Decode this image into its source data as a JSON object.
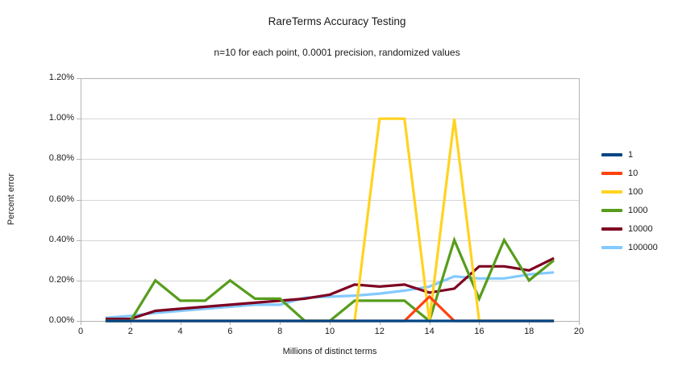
{
  "chart_data": {
    "type": "line",
    "title": "RareTerms Accuracy Testing",
    "subtitle": "n=10 for each point, 0.0001 precision, randomized values",
    "xlabel": "Millions of distinct terms",
    "ylabel": "Percent error",
    "x": [
      1,
      2,
      3,
      4,
      5,
      6,
      7,
      8,
      9,
      10,
      11,
      12,
      13,
      14,
      15,
      16,
      17,
      18,
      19
    ],
    "xlim": [
      0,
      20
    ],
    "ylim_percent": [
      0,
      1.2
    ],
    "x_tick_values": [
      0,
      2,
      4,
      6,
      8,
      10,
      12,
      14,
      16,
      18,
      20
    ],
    "y_tick_values": [
      0,
      0.2,
      0.4,
      0.6,
      0.8,
      1.0,
      1.2
    ],
    "y_tick_labels": [
      "0.00%",
      "0.20%",
      "0.40%",
      "0.60%",
      "0.80%",
      "1.00%",
      "1.20%"
    ],
    "grid": "horizontal",
    "legend_position": "right",
    "series": [
      {
        "name": "1",
        "color": "#004586",
        "values": [
          0,
          0,
          0,
          0,
          0,
          0,
          0,
          0,
          0,
          0,
          0,
          0,
          0,
          0,
          0,
          0,
          0,
          0,
          0
        ]
      },
      {
        "name": "10",
        "color": "#FF420E",
        "values": [
          0,
          0,
          0,
          0,
          0,
          0,
          0,
          0,
          0,
          0,
          0,
          0,
          0,
          0.12,
          0,
          0,
          0,
          0,
          0
        ]
      },
      {
        "name": "100",
        "color": "#FFD320",
        "values": [
          0,
          0,
          0,
          0,
          0,
          0,
          0,
          0,
          0,
          0,
          0,
          1.0,
          1.0,
          0,
          1.0,
          0,
          0,
          0,
          0
        ]
      },
      {
        "name": "1000",
        "color": "#579D1C",
        "values": [
          0,
          0,
          0.2,
          0.1,
          0.1,
          0.2,
          0.11,
          0.11,
          0,
          0,
          0.1,
          0.1,
          0.1,
          0,
          0.4,
          0.11,
          0.4,
          0.2,
          0.3
        ]
      },
      {
        "name": "10000",
        "color": "#7E0021",
        "values": [
          0.01,
          0.01,
          0.05,
          0.06,
          0.07,
          0.08,
          0.09,
          0.1,
          0.11,
          0.13,
          0.18,
          0.17,
          0.18,
          0.14,
          0.16,
          0.27,
          0.27,
          0.25,
          0.31
        ]
      },
      {
        "name": "100000",
        "color": "#83CAFF",
        "values": [
          0.015,
          0.025,
          0.04,
          0.05,
          0.06,
          0.07,
          0.08,
          0.08,
          0.115,
          0.12,
          0.125,
          0.135,
          0.15,
          0.17,
          0.22,
          0.21,
          0.21,
          0.23,
          0.24
        ]
      }
    ]
  },
  "style_colors": {
    "background": "#ffffff",
    "grid": "#d6d6d6",
    "axis": "#b3b3b3",
    "text": "#1a1a1a"
  }
}
